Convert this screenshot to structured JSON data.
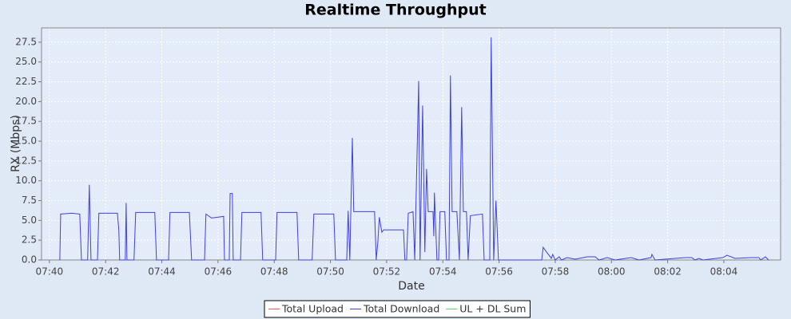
{
  "chart_data": {
    "type": "line",
    "title": "Realtime Throughput",
    "x_label": "Date",
    "y_label": "RX (Mbps)",
    "x": [
      460.37,
      460.4,
      460.8,
      461.08,
      461.14,
      461.36,
      461.42,
      461.48,
      461.71,
      461.76,
      462.42,
      462.47,
      462.5,
      462.7,
      462.73,
      462.76,
      463.01,
      463.07,
      463.75,
      463.81,
      464.24,
      464.29,
      464.98,
      465.06,
      465.52,
      465.57,
      465.77,
      466.2,
      466.23,
      466.4,
      466.43,
      466.51,
      466.54,
      466.8,
      466.85,
      467.53,
      467.59,
      468.05,
      468.1,
      468.81,
      468.87,
      469.35,
      469.41,
      470.12,
      470.18,
      470.58,
      470.63,
      470.69,
      470.78,
      470.83,
      471.57,
      471.63,
      471.69,
      471.74,
      471.83,
      471.89,
      472.6,
      472.65,
      472.71,
      472.77,
      472.94,
      473.0,
      473.14,
      473.19,
      473.28,
      473.36,
      473.42,
      473.48,
      473.65,
      473.68,
      473.7,
      473.79,
      473.85,
      473.9,
      474.07,
      474.13,
      474.22,
      474.27,
      474.33,
      474.5,
      474.59,
      474.67,
      474.73,
      474.84,
      474.9,
      474.98,
      475.41,
      475.47,
      475.67,
      475.72,
      475.81,
      475.89,
      475.98,
      477.52,
      477.57,
      477.69,
      477.8,
      477.86,
      477.91,
      478.0,
      478.14,
      478.22,
      478.42,
      478.71,
      479.14,
      479.42,
      479.56,
      479.85,
      480.13,
      480.7,
      480.98,
      481.41,
      481.44,
      481.55,
      482.63,
      482.86,
      482.97,
      483.12,
      483.26,
      483.97,
      484.11,
      484.4,
      484.96,
      485.25,
      485.31,
      485.48,
      485.59
    ],
    "series": [
      {
        "name": "Total Upload",
        "color": "#ff5555"
      },
      {
        "name": "Total Download",
        "color": "#4040dd",
        "values": [
          0,
          5.8,
          5.9,
          5.8,
          0,
          0,
          9.5,
          0,
          0,
          5.9,
          5.9,
          3.8,
          0,
          0,
          7.2,
          0,
          0,
          6.0,
          6.0,
          0,
          0,
          6.0,
          6.0,
          0,
          0,
          5.8,
          5.3,
          5.5,
          0,
          0,
          8.4,
          8.4,
          0,
          0,
          6.0,
          6.0,
          0,
          0,
          6.0,
          6.0,
          0,
          0,
          5.8,
          5.8,
          0,
          0,
          6.2,
          0,
          15.4,
          6.1,
          6.1,
          0,
          2.4,
          5.4,
          3.5,
          3.8,
          3.8,
          0,
          0,
          5.9,
          6.1,
          0,
          22.6,
          0,
          19.5,
          1.0,
          11.5,
          6.1,
          6.1,
          3.0,
          8.5,
          0,
          0,
          6.1,
          6.1,
          0,
          0,
          23.3,
          6.1,
          6.1,
          0,
          19.3,
          6.1,
          6.1,
          0,
          5.6,
          5.8,
          0,
          0,
          28.1,
          0,
          7.5,
          0,
          0,
          1.6,
          1.0,
          0.5,
          0.2,
          0.7,
          0,
          0.4,
          0,
          0.3,
          0.1,
          0.4,
          0.4,
          0,
          0.3,
          0,
          0.3,
          0,
          0.3,
          0.7,
          0,
          0.3,
          0.3,
          0,
          0.2,
          0,
          0.3,
          0.6,
          0.2,
          0.3,
          0.3,
          0,
          0.4,
          0
        ]
      },
      {
        "name": "UL + DL Sum",
        "color": "#55dd55"
      }
    ],
    "xlim": [
      459.72,
      486.02
    ],
    "xticks": [
      {
        "value": 460,
        "label": "07:40"
      },
      {
        "value": 462,
        "label": "07:42"
      },
      {
        "value": 464,
        "label": "07:44"
      },
      {
        "value": 466,
        "label": "07:46"
      },
      {
        "value": 468,
        "label": "07:48"
      },
      {
        "value": 470,
        "label": "07:50"
      },
      {
        "value": 472,
        "label": "07:52"
      },
      {
        "value": 474,
        "label": "07:54"
      },
      {
        "value": 476,
        "label": "07:56"
      },
      {
        "value": 478,
        "label": "07:58"
      },
      {
        "value": 480,
        "label": "08:00"
      },
      {
        "value": 482,
        "label": "08:02"
      },
      {
        "value": 484,
        "label": "08:04"
      }
    ],
    "ylim": [
      0,
      29.3
    ],
    "yticks": [
      {
        "value": 0,
        "label": "0.0"
      },
      2.5,
      {
        "value": 5,
        "label": "5.0"
      },
      7.5,
      {
        "value": 10,
        "label": "10.0"
      },
      12.5,
      {
        "value": 15,
        "label": "15.0"
      },
      17.5,
      {
        "value": 20,
        "label": "20.0"
      },
      22.5,
      {
        "value": 25,
        "label": "25.0"
      },
      27.5
    ],
    "grid": true
  }
}
